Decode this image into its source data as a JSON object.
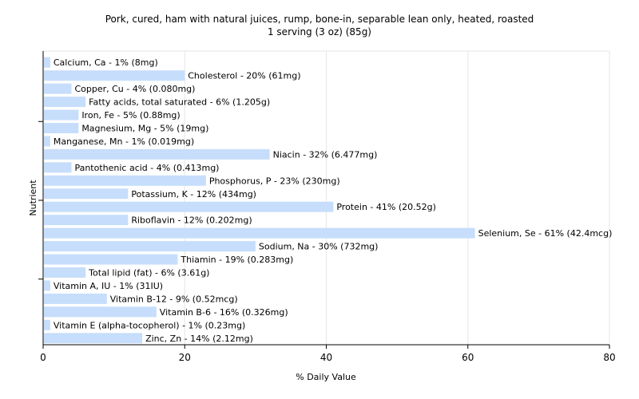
{
  "chart_data": {
    "type": "bar",
    "orientation": "horizontal",
    "title": "Pork, cured, ham with natural juices, rump, bone-in, separable lean only, heated, roasted",
    "subtitle": "1 serving (3 oz) (85g)",
    "xlabel": "% Daily Value",
    "ylabel": "Nutrient",
    "xlim": [
      0,
      80
    ],
    "x_ticks": [
      "0",
      "20",
      "40",
      "60",
      "80"
    ],
    "grid": "vertical",
    "colors": {
      "bar": "#c6defb",
      "grid": "#e6e6e6",
      "axis": "#000000",
      "frame": "#e6e6e6"
    },
    "bars": [
      {
        "label": "Calcium, Ca - 1% (8mg)",
        "value": 1
      },
      {
        "label": "Cholesterol - 20% (61mg)",
        "value": 20
      },
      {
        "label": "Copper, Cu - 4% (0.080mg)",
        "value": 4
      },
      {
        "label": "Fatty acids, total saturated - 6% (1.205g)",
        "value": 6
      },
      {
        "label": "Iron, Fe - 5% (0.88mg)",
        "value": 5
      },
      {
        "label": "Magnesium, Mg - 5% (19mg)",
        "value": 5
      },
      {
        "label": "Manganese, Mn - 1% (0.019mg)",
        "value": 1
      },
      {
        "label": "Niacin - 32% (6.477mg)",
        "value": 32
      },
      {
        "label": "Pantothenic acid - 4% (0.413mg)",
        "value": 4
      },
      {
        "label": "Phosphorus, P - 23% (230mg)",
        "value": 23
      },
      {
        "label": "Potassium, K - 12% (434mg)",
        "value": 12
      },
      {
        "label": "Protein - 41% (20.52g)",
        "value": 41
      },
      {
        "label": "Riboflavin - 12% (0.202mg)",
        "value": 12
      },
      {
        "label": "Selenium, Se - 61% (42.4mcg)",
        "value": 61
      },
      {
        "label": "Sodium, Na - 30% (732mg)",
        "value": 30
      },
      {
        "label": "Thiamin - 19% (0.283mg)",
        "value": 19
      },
      {
        "label": "Total lipid (fat) - 6% (3.61g)",
        "value": 6
      },
      {
        "label": "Vitamin A, IU - 1% (31IU)",
        "value": 1
      },
      {
        "label": "Vitamin B-12 - 9% (0.52mcg)",
        "value": 9
      },
      {
        "label": "Vitamin B-6 - 16% (0.326mg)",
        "value": 16
      },
      {
        "label": "Vitamin E (alpha-tocopherol) - 1% (0.23mg)",
        "value": 1
      },
      {
        "label": "Zinc, Zn - 14% (2.12mg)",
        "value": 14
      }
    ]
  }
}
